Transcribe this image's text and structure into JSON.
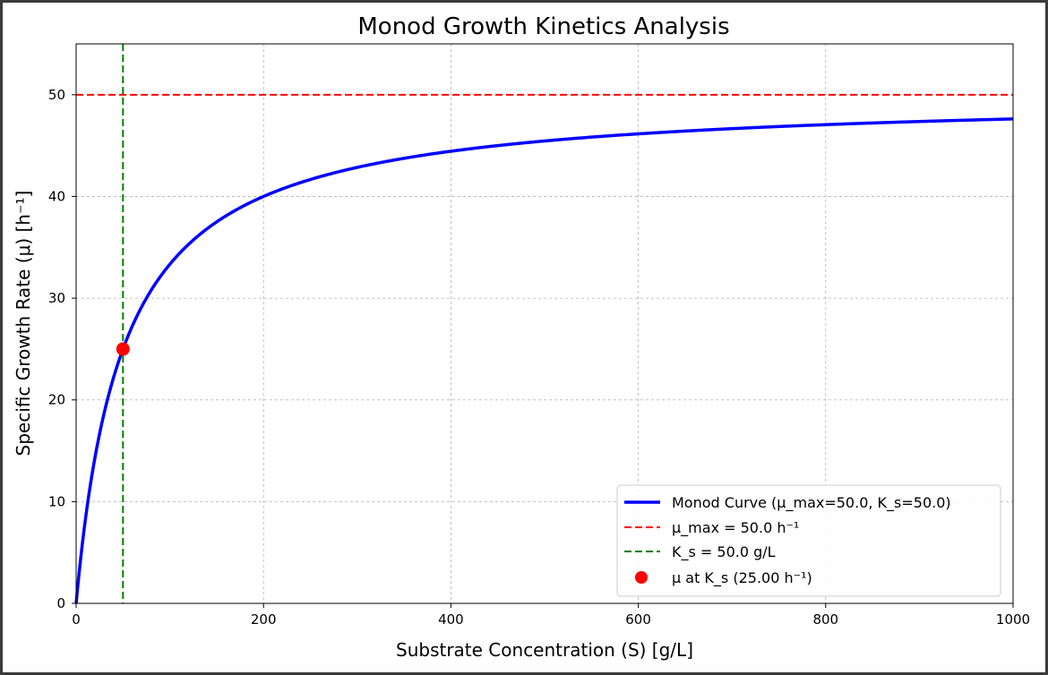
{
  "chart_data": {
    "type": "line",
    "title": "Monod Growth Kinetics Analysis",
    "xlabel": "Substrate Concentration (S) [g/L]",
    "ylabel": "Specific Growth Rate (μ) [h⁻¹]",
    "xlim": [
      0,
      1000
    ],
    "ylim": [
      0,
      55
    ],
    "xticks": [
      0,
      200,
      400,
      600,
      800,
      1000
    ],
    "yticks": [
      0,
      10,
      20,
      30,
      40,
      50
    ],
    "grid": true,
    "legend_position": "bottom-right",
    "model": {
      "mu_max": 50.0,
      "K_s": 50.0
    },
    "series": [
      {
        "name": "Monod Curve (μ_max=50.0, K_s=50.0)",
        "kind": "curve",
        "color": "#0000ff",
        "style": "solid"
      },
      {
        "name": "μ_max = 50.0 h⁻¹",
        "kind": "hline",
        "y": 50.0,
        "color": "#ff0000",
        "style": "dashed"
      },
      {
        "name": "K_s = 50.0 g/L",
        "kind": "vline",
        "x": 50.0,
        "color": "#008000",
        "style": "dashed"
      },
      {
        "name": "μ at K_s (25.00 h⁻¹)",
        "kind": "point",
        "x": 50.0,
        "y": 25.0,
        "color": "#ff0000"
      }
    ]
  }
}
